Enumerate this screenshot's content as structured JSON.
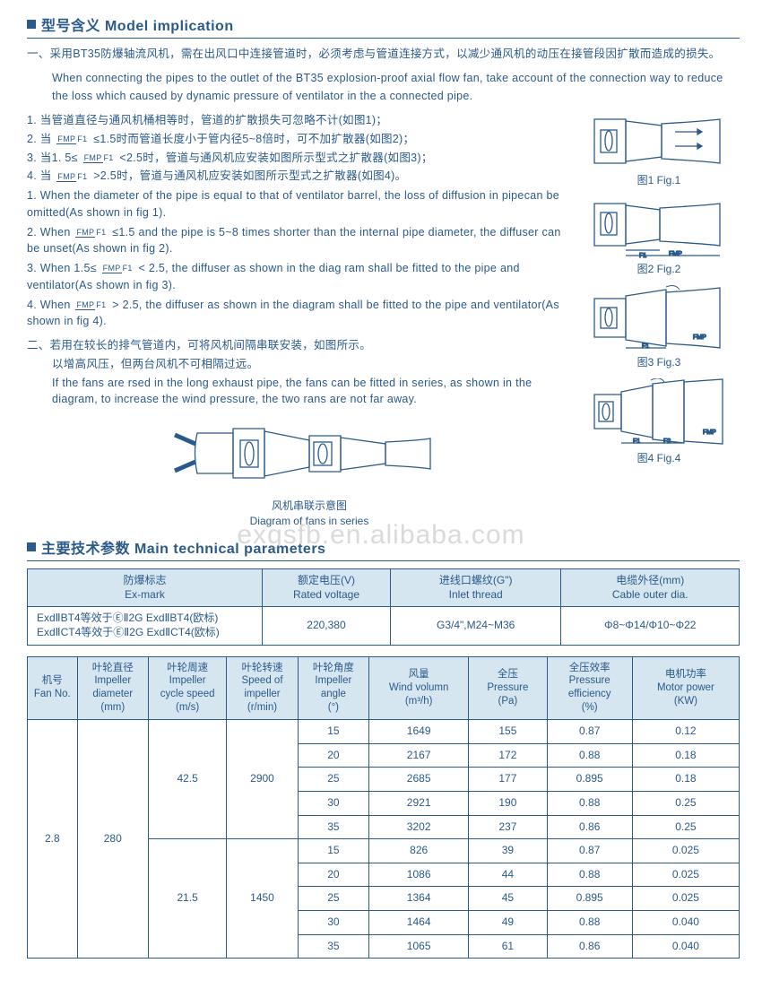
{
  "section1": {
    "title_zh": "型号含义",
    "title_en": "Model implication"
  },
  "intro_zh": "一、采用BT35防爆轴流风机，需在出风口中连接管道时，必须考虑与管道连接方式，以减少通风机的动压在接管段因扩散而造成的损失。",
  "intro_en": "When connecting the pipes to the outlet of the BT35 explosion-proof axial flow fan,  take account of the connection way to reduce the loss which caused by dynamic pressure of ventilator in the a connected pipe.",
  "zh": {
    "l1": "1. 当管道直径与通风机桶相等时，管道的扩散损失可忽略不计(如图1)；",
    "l2a": "2. 当",
    "l2b": "≤1.5时而管道长度小于管内径5~8倍时，可不加扩散器(如图2)；",
    "l3a": "3. 当1. 5≤",
    "l3b": "<2.5时，管道与通风机应安装如图所示型式之扩散器(如图3)；",
    "l4a": "4. 当",
    "l4b": ">2.5时，管道与通风机应安装如图所示型式之扩散器(如图4)。"
  },
  "en": {
    "l1": "1. When the diameter of the pipe is equaI to that of ventilator barrel, the loss of diffusion in pipecan be omitted(As shown in fig 1).",
    "l2a": "2. When",
    "l2b": "≤1.5 and the pipe is 5~8 times shorter than the internaI pipe diameter, the diffuser can be unset(As shown in fig 2).",
    "l3a": "3. When 1.5≤",
    "l3b": "< 2.5, the diffuser as shown in the diag ram shall be fitted to the pipe and ventilator(As shown in fig 3).",
    "l4a": "4. When",
    "l4b": "> 2.5, the diffuser as shown in the diagram shall be fitted to the pipe and ventilator(As shown in fig 4)."
  },
  "frac": {
    "num": "FMP",
    "den": "F1"
  },
  "part2": {
    "zh1": "二、若用在较长的排气管道内，可将风机间隔串联安装，如图所示。",
    "zh2": "以增高风压，但两台风机不可相隔过远。",
    "en": "If the fans are rsed in the long exhaust pipe, the fans can be fitted in series, as shown in the diagram, to increase the wind pressure, the two rans are not far away."
  },
  "figs": {
    "f1": "图1 Fig.1",
    "f2": "图2 Fig.2",
    "f3": "图3 Fig.3",
    "f4": "图4 Fig.4",
    "series_zh": "风机串联示意图",
    "series_en": "Diagram of fans in series"
  },
  "section2": {
    "title_zh": "主要技术参数",
    "title_en": "Main technical parameters"
  },
  "t1": {
    "h1a": "防爆标志",
    "h1b": "Ex-mark",
    "h2a": "额定电压(V)",
    "h2b": "Rated voltage",
    "h3a": "进线口螺纹(G\")",
    "h3b": "Inlet thread",
    "h4a": "电缆外径(mm)",
    "h4b": "Cable outer dia.",
    "c1a": "ExdⅡBT4等效于ⒺⅡ2G ExdⅡBT4(欧标)",
    "c1b": "ExdⅡCT4等效于ⒺⅡ2G ExdⅡCT4(欧标)",
    "c2": "220,380",
    "c3": "G3/4\",M24~M36",
    "c4": "Φ8~Φ14/Φ10~Φ22"
  },
  "t2": {
    "h": {
      "c1a": "机号",
      "c1b": "Fan No.",
      "c2a": "叶轮直径",
      "c2b": "Impeller",
      "c2c": "diameter",
      "c2d": "(mm)",
      "c3a": "叶轮周速",
      "c3b": "Impeller",
      "c3c": "cycle speed",
      "c3d": "(m/s)",
      "c4a": "叶轮转速",
      "c4b": "Speed of",
      "c4c": "impeller",
      "c4d": "(r/min)",
      "c5a": "叶轮角度",
      "c5b": "Impeller",
      "c5c": "angle",
      "c5d": "(°)",
      "c6a": "风量",
      "c6b": "Wind volumn",
      "c6c": "(m³/h)",
      "c7a": "全压",
      "c7b": "Pressure",
      "c7c": "(Pa)",
      "c8a": "全压效率",
      "c8b": "Pressure",
      "c8c": "efficiency",
      "c8d": "(%)",
      "c9a": "电机功率",
      "c9b": "Motor power",
      "c9c": "(KW)"
    },
    "fan": "2.8",
    "dia": "280",
    "sp1": "42.5",
    "rpm1": "2900",
    "sp2": "21.5",
    "rpm2": "1450",
    "r": [
      {
        "a": "15",
        "v": "1649",
        "p": "155",
        "e": "0.87",
        "m": "0.12"
      },
      {
        "a": "20",
        "v": "2167",
        "p": "172",
        "e": "0.88",
        "m": "0.18"
      },
      {
        "a": "25",
        "v": "2685",
        "p": "177",
        "e": "0.895",
        "m": "0.18"
      },
      {
        "a": "30",
        "v": "2921",
        "p": "190",
        "e": "0.88",
        "m": "0.25"
      },
      {
        "a": "35",
        "v": "3202",
        "p": "237",
        "e": "0.86",
        "m": "0.25"
      },
      {
        "a": "15",
        "v": "826",
        "p": "39",
        "e": "0.87",
        "m": "0.025"
      },
      {
        "a": "20",
        "v": "1086",
        "p": "44",
        "e": "0.88",
        "m": "0.025"
      },
      {
        "a": "25",
        "v": "1364",
        "p": "45",
        "e": "0.895",
        "m": "0.025"
      },
      {
        "a": "30",
        "v": "1464",
        "p": "49",
        "e": "0.88",
        "m": "0.040"
      },
      {
        "a": "35",
        "v": "1065",
        "p": "61",
        "e": "0.86",
        "m": "0.040"
      }
    ]
  },
  "watermark": "exgsfb.en.alibaba.com",
  "style": {
    "color": "#2a5a8a",
    "th_bg": "#d6e6f0"
  }
}
